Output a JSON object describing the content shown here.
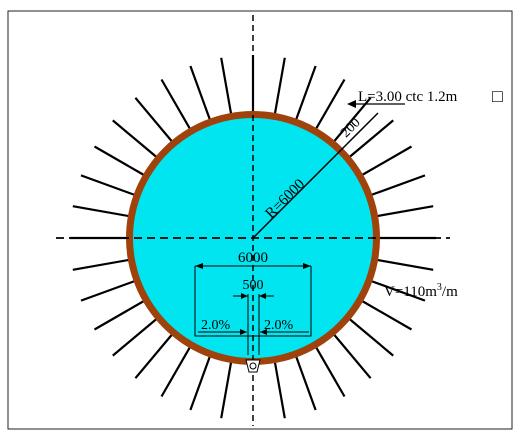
{
  "colors": {
    "background": "#ffffff",
    "tunnel_fill": "#00e5f0",
    "lining": "#a0420c",
    "ink": "#000000"
  },
  "labels": {
    "bolt_spec": "L=3.00 ctc 1.2m",
    "bolt_spec_symbol": "□",
    "lining_thickness": "200",
    "radius": "R=6000",
    "width": "6000",
    "drain_width": "500",
    "slope_left": "2.0%",
    "slope_right": "2.0%",
    "volume_prefix": "V=110m",
    "volume_exp": "3",
    "volume_suffix": "/m"
  }
}
